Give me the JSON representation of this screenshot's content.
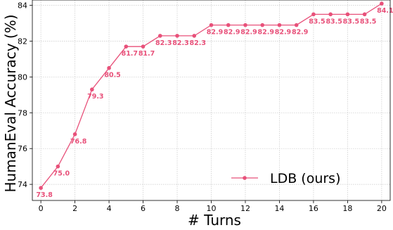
{
  "chart_data": {
    "type": "line",
    "title": "",
    "xlabel": "# Turns",
    "ylabel": "HumanEval Accuracy (%)",
    "xlim": [
      -0.5,
      20.5
    ],
    "ylim": [
      73.1,
      84.3
    ],
    "x_ticks": [
      0,
      2,
      4,
      6,
      8,
      10,
      12,
      14,
      16,
      18,
      20
    ],
    "y_ticks": [
      74,
      76,
      78,
      80,
      82,
      84
    ],
    "grid": true,
    "legend_position": "lower-right",
    "series": [
      {
        "name": "LDB (ours)",
        "color": "#e8517a",
        "x": [
          0,
          1,
          2,
          3,
          4,
          5,
          6,
          7,
          8,
          9,
          10,
          11,
          12,
          13,
          14,
          15,
          16,
          17,
          18,
          19,
          20
        ],
        "y": [
          73.8,
          75.0,
          76.8,
          79.3,
          80.5,
          81.7,
          81.7,
          82.3,
          82.3,
          82.3,
          82.9,
          82.9,
          82.9,
          82.9,
          82.9,
          82.9,
          83.5,
          83.5,
          83.5,
          83.5,
          84.1
        ],
        "labels": [
          "73.8",
          "75.0",
          "76.8",
          "79.3",
          "80.5",
          "81.7",
          "81.7",
          "82.3",
          "82.3",
          "82.3",
          "82.9",
          "82.9",
          "82.9",
          "82.9",
          "82.9",
          "82.9",
          "83.5",
          "83.5",
          "83.5",
          "83.5",
          "84.1"
        ]
      }
    ]
  }
}
